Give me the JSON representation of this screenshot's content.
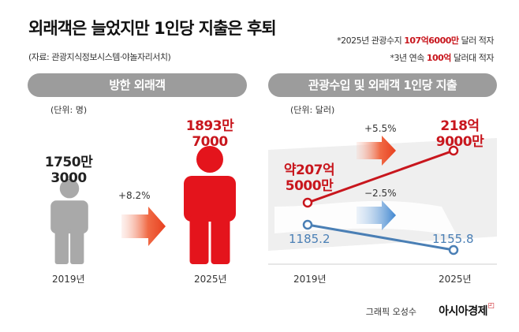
{
  "title": "외래객은 늘었지만 1인당 지출은 후퇴",
  "source": "(자료: 관광지식정보시스템·야놀자리서치)",
  "notes": {
    "note1_prefix": "*2025년 관광수지 ",
    "note1_highlight": "107억6000만",
    "note1_suffix": " 달러 적자",
    "note2_prefix": "*3년 연속 ",
    "note2_highlight": "100억",
    "note2_suffix": " 달러대 적자"
  },
  "footer": {
    "credit": "그래픽 오성수",
    "brand": "아시아경제"
  },
  "colors": {
    "red": "#c8161d",
    "blue": "#4a7fb5",
    "gray": "#a9a9a9",
    "pill": "#9c9c9c"
  },
  "chart_data": [
    {
      "type": "bar",
      "title": "방한 외래객",
      "unit": "(단위: 명)",
      "categories": [
        "2019년",
        "2025년"
      ],
      "values": [
        17503000,
        18937000
      ],
      "value_labels": [
        [
          "1750만",
          "3000"
        ],
        [
          "1893만",
          "7000"
        ]
      ],
      "change_label": "+8.2%",
      "icon": "person-icon"
    },
    {
      "type": "line",
      "title": "관광수입 및 외래객 1인당 지출",
      "unit": "(단위: 달러)",
      "x": [
        "2019년",
        "2025년"
      ],
      "series": [
        {
          "values": [
            20750000000,
            21890000000
          ],
          "value_labels": [
            [
              "약207억",
              "5000만"
            ],
            [
              "218억",
              "9000만"
            ]
          ],
          "change_label": "+5.5%",
          "color": "#c8161d"
        },
        {
          "values": [
            1185.2,
            1155.8
          ],
          "value_labels": [
            [
              "1185.2"
            ],
            [
              "1155.8"
            ]
          ],
          "change_label": "−2.5%",
          "color": "#4a7fb5"
        }
      ]
    }
  ]
}
